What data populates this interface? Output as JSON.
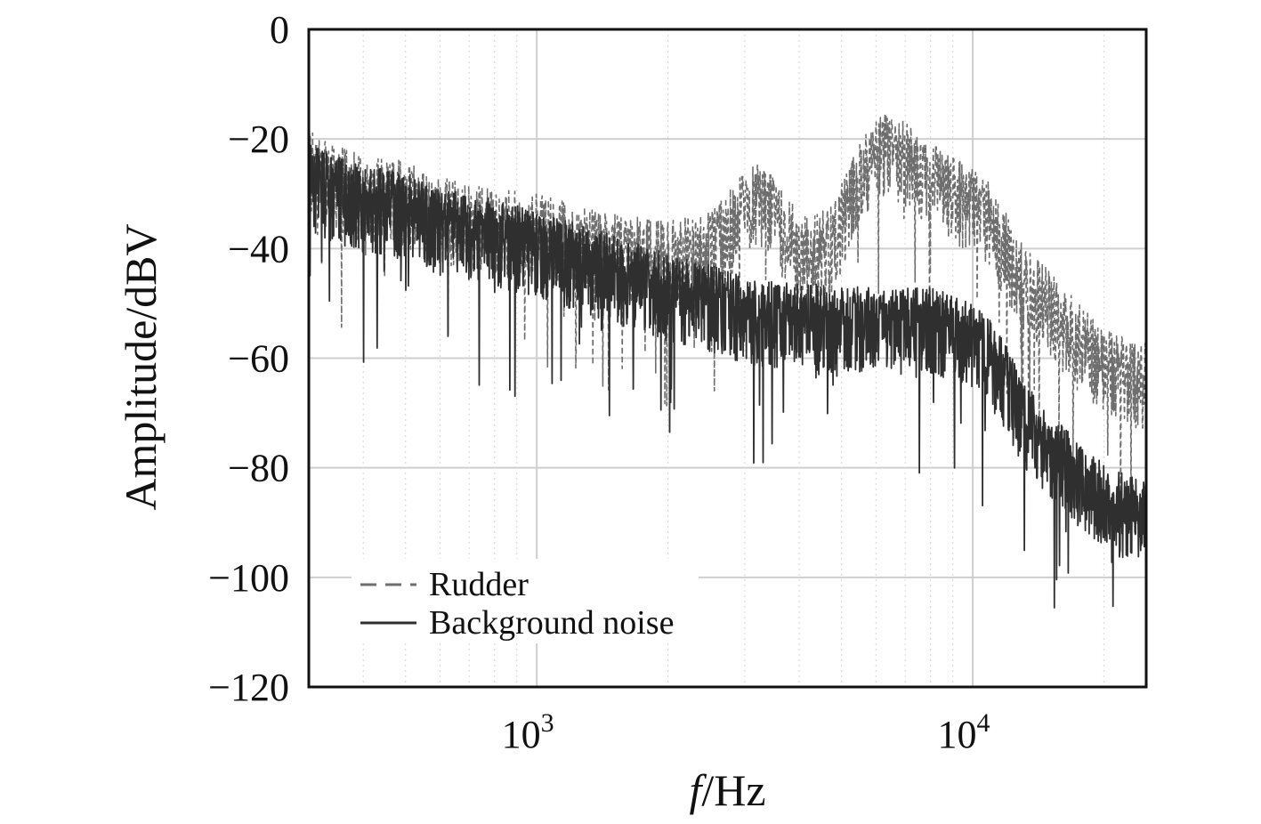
{
  "chart_data": {
    "type": "line",
    "xlabel_italic": "f",
    "xlabel_rest": "/Hz",
    "ylabel": "Amplitude/dBV",
    "x_scale": "log",
    "xlim": [
      300,
      25000
    ],
    "ylim": [
      -120,
      0
    ],
    "y_ticks": [
      0,
      -20,
      -40,
      -60,
      -80,
      -100,
      -120
    ],
    "y_tick_labels": [
      "0",
      "−20",
      "−40",
      "−60",
      "−80",
      "−100",
      "−120"
    ],
    "x_ticks": [
      {
        "value": 1000,
        "base": "10",
        "exp": "3"
      },
      {
        "value": 10000,
        "base": "10",
        "exp": "4"
      }
    ],
    "grid": true,
    "legend_position": "bottom-left",
    "colors": {
      "rudder": "#6e6e6e",
      "background": "#2f2f2f",
      "grid": "#cfcfcf",
      "frame": "#111111"
    },
    "series": [
      {
        "name": "Rudder",
        "style": "dashed",
        "x": [
          300,
          400,
          500,
          600,
          800,
          1000,
          1300,
          1700,
          2000,
          2500,
          3000,
          3300,
          3700,
          4200,
          4800,
          5300,
          5800,
          6300,
          7000,
          8000,
          9000,
          10000,
          11000,
          12000,
          13000,
          15000,
          17000,
          19000,
          21000,
          23000,
          25000
        ],
        "y": [
          -25,
          -30,
          -31,
          -34,
          -36,
          -37,
          -39,
          -41,
          -42,
          -40,
          -33,
          -31,
          -37,
          -41,
          -39,
          -30,
          -25,
          -22,
          -24,
          -27,
          -30,
          -32,
          -35,
          -41,
          -46,
          -51,
          -56,
          -60,
          -62,
          -64,
          -64
        ]
      },
      {
        "name": "Background noise",
        "style": "solid",
        "x": [
          300,
          400,
          500,
          600,
          800,
          1000,
          1300,
          1700,
          2000,
          2500,
          3000,
          3500,
          4000,
          5000,
          6000,
          7000,
          8000,
          9000,
          10000,
          11000,
          12000,
          13000,
          15000,
          17000,
          19000,
          21000,
          23000,
          25000
        ],
        "y": [
          -27,
          -31,
          -32,
          -35,
          -37,
          -39,
          -42,
          -45,
          -47,
          -49,
          -51,
          -52,
          -52,
          -53,
          -53,
          -53,
          -53,
          -54,
          -56,
          -59,
          -64,
          -70,
          -76,
          -80,
          -84,
          -86,
          -87,
          -88
        ]
      }
    ]
  }
}
